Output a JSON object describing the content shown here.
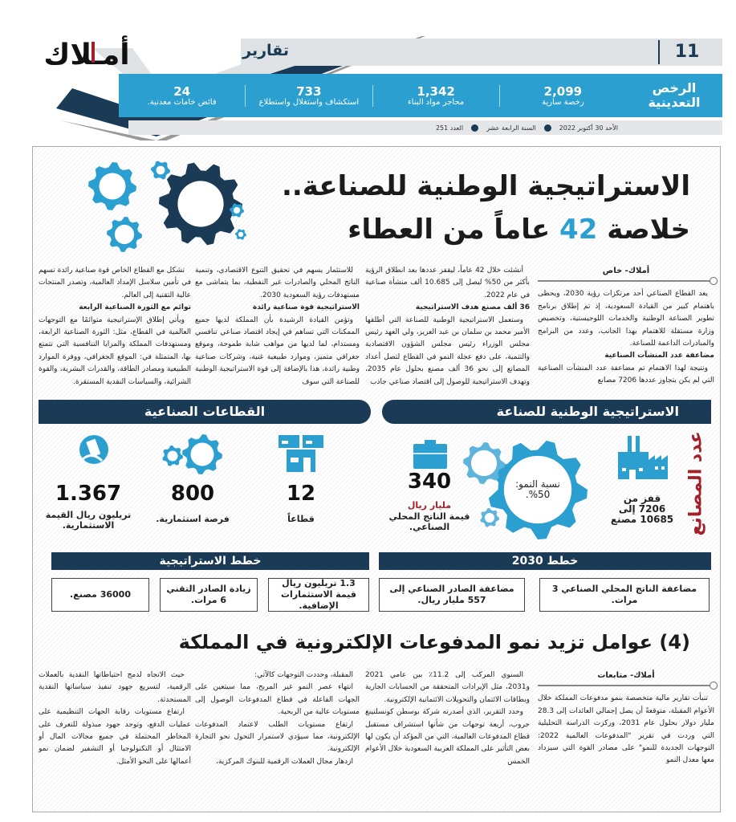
{
  "brand": {
    "logo_text": "أملاك",
    "accent": "#2a9fd0",
    "navy": "#1b3a55",
    "red": "#a3202a"
  },
  "header": {
    "section": "تقارير",
    "page_number": "11",
    "date": "الأحد 30 أكتوبر 2022",
    "year": "السنة الرابعة عشر",
    "issue": "العدد 251"
  },
  "stats": {
    "title": "الرخص التعدينية",
    "items": [
      {
        "value": "2,099",
        "label": "رخصة سارية"
      },
      {
        "value": "1,342",
        "label": "محاجر مواد البناء"
      },
      {
        "value": "733",
        "label": "استكشاف واستغلال واستطلاع"
      },
      {
        "value": "24",
        "label": "فائض خامات معدنية."
      }
    ]
  },
  "article1": {
    "title_line1": "الاستراتيجية الوطنية للصناعة..",
    "title_line2_pre": "خلاصة ",
    "title_line2_num": "42",
    "title_line2_post": " عاماً من العطاء",
    "byline": "أملاك- خاص",
    "columns": [
      [
        {
          "t": "p",
          "x": "يعد القطاع الصناعي أحد مرتكزات رؤية 2030، ويحظى باهتمام كبير من القيادة السعودية، إذ تم إطلاق برنامج تطوير الصناعة الوطنية والخدمات اللوجيستية، وتخصيص وزارة مستقلة للاهتمام بهذا الجانب، وعدد من البرامج والمبادرات الداعمة للصناعة."
        },
        {
          "t": "h",
          "x": "مضاعفة عدد المنشآت الصناعية"
        },
        {
          "t": "p",
          "x": "ونتيجة لهذا الاهتمام تم مضاعفة عدد المنشآت الصناعية التي لم يكن يتجاوز عددها 7206 مصانع"
        }
      ],
      [
        {
          "t": "p",
          "x": "أنشئت خلال 42 عاماً، ليقفز عددها بعد انطلاق الرؤية بأكثر من 50% ليصل إلى 10.685 ألف منشأة صناعية في عام 2022."
        },
        {
          "t": "h",
          "x": "36 ألف مصنع هدف الاستراتيجية"
        },
        {
          "t": "p",
          "x": "وستعمل الاستراتيجية الوطنية للصناعة التي أطلقها الأمير محمد بن سلمان بن عبد العزيز، ولي العهد رئيس مجلس الوزراء رئيس مجلس الشؤون الاقتصادية والتنمية، على دفع عجلة النمو في القطاع لتصل أعداد المصانع إلى نحو 36 ألف مصنع بحلول عام 2035، وتهدف الاستراتيجية للوصول إلى اقتصاد صناعي جاذب"
        }
      ],
      [
        {
          "t": "p",
          "x": "للاستثمار يسهم في تحقيق التنوع الاقتصادي، وتنمية الناتج المحلي والصادرات غير النفطية، بما يتماشى مع مستهدفات رؤية السعودية 2030."
        },
        {
          "t": "h",
          "x": "الاستراتيجية قوة صناعية رائدة"
        },
        {
          "t": "p",
          "x": "وتؤمن القيادة الرشيدة بأن المملكة لديها جميع الممكنات التي تساهم في إيجاد اقتصاد صناعي تنافسي ومستدام، لما لديها من مواهب شابة طموحة، وموقع جغرافي متميز، وموارد طبيعية غنية، وشركات صناعية وطنية رائدة، هذا بالإضافة إلى قوة الاستراتيجية الوطنية للصناعة التي سوف"
        }
      ],
      [
        {
          "t": "p",
          "x": "تشكل مع القطاع الخاص قوة صناعية رائدة تسهم في تأمين سلاسل الإمداد العالمية، وتصدر المنتجات عالية التقنية إلى العالم."
        },
        {
          "t": "h",
          "x": "توائم مع الثورة الصناعية الرابعة"
        },
        {
          "t": "p",
          "x": "ويأتي إطلاق الإستراتيجية متوائمًا مع التوجهات العالمية في القطاع، مثل: الثورة الصناعية الرابعة، ومستهدفات المملكة والمزايا التنافسية التي تتمتع بها، المتمثلة في: الموقع الجغرافي، ووفرة الموارد الطبيعية ومصادر الطاقة، والقدرات البشرية، والقوة الشرائية، والسياسات النقدية المستقرة."
        }
      ]
    ]
  },
  "infographic": {
    "national": {
      "title": "الاستراتيجية الوطنية للصناعة",
      "side_label": "عدد المصانع",
      "factories": "قفز من 7206 إلى 10685 مصنع",
      "growth": "نسبة النمو: 50%.",
      "gdp_value": "340",
      "gdp_unit": "مليار ريال",
      "gdp_label": "قيمة الناتج المحلي الصناعي."
    },
    "sectors": {
      "title": "القطاعات الصناعية",
      "items": [
        {
          "value": "12",
          "label": "قطاعاً",
          "icon": "buildings-icon"
        },
        {
          "value": "800",
          "label": "فرصة استثمارية.",
          "icon": "gears-icon"
        },
        {
          "value": "1.367",
          "label": "تريليون ريال القيمة الاستثمارية.",
          "icon": "money-hand-icon"
        }
      ]
    },
    "plans2030": {
      "title": "خطط 2030",
      "items": [
        "مضاعفة الناتج المحلي الصناعي 3 مرات.",
        "مضاعفة الصادر الصناعي إلى 557 مليار ريال."
      ]
    },
    "strategy_plans": {
      "title": "خطط الاستراتيجية",
      "items": [
        "1.3 تريليون ريال قيمة الاستثمارات الإضافية.",
        "زيادة الصادر التقني 6 مرات.",
        "36000 مصنع."
      ]
    }
  },
  "article2": {
    "title": "(4) عوامل تزيد نمو المدفوعات الإلكترونية في المملكة",
    "byline": "أملاك- متابعات",
    "columns": [
      [
        {
          "t": "p",
          "x": "تنبأت تقارير مالية متخصصة بنمو مدفوعات المملكة خلال الأعوام المقبلة، متوقعةً أن يصل إجمالي العائدات إلى 28.3 مليار دولار بحلول عام 2031، وركزت الدراسة التحليلية التي وردت في تقرير \"المدفوعات العالمية 2022: التوجهات الجديدة للنمو\" على مصادر القوة التي سيزداد معها معدل النمو"
        }
      ],
      [
        {
          "t": "p",
          "x": "السنوي المركب إلى 11.2٪ بين عامي 2021 و2031، مثل الإيرادات المتحققة من الحسابات الجارية وبطاقات الائتمان والتحويلات الائتمانية الإلكترونية."
        },
        {
          "t": "p",
          "x": "وحدد التقرير، الذي أصدرته شركة بوسطن كونسلتينغ جروب، أربعة توجهات من شأنها استشراف مستقبل قطاع المدفوعات العالمية، التي من المؤكد أن يكون لها بعض التأثير على المملكة العربية السعودية خلال الأعوام الخمس"
        }
      ],
      [
        {
          "t": "p",
          "x": "المقبلة، وحددت التوجهات كالآتي:"
        },
        {
          "t": "p",
          "x": "انتهاء عصر النمو غير المربح، مما سيتعين على الجهات الفاعلة في قطاع المدفوعات الوصول إلى مستويات عالية من الربحية."
        },
        {
          "t": "p",
          "x": "ارتفاع مستويات الطلب لاعتماد المدفوعات الإلكترونية، مما سيؤدي لاستمرار التحول نحو التجارة الإلكترونية."
        },
        {
          "t": "p",
          "x": "ازدهار مجال العملات الرقمية للبنوك المركزية،"
        }
      ],
      [
        {
          "t": "p",
          "x": "حيث الاتجاه لدمج احتياطاتها النقدية بالعملات الرقمية، لتسريع جهود تنفيذ سياساتها النقدية المستحدثة."
        },
        {
          "t": "p",
          "x": "ارتفاع مستويات رقابة الجهات التنظيمية على عمليات الدفع، وتوجد جهود مبذولة للتعرف على المخاطر المحتملة في جميع مجالات المال أو الامتثال أو التكنولوجيا أو التشفير لضمان نمو أعمالها على النحو الأمثل."
        }
      ]
    ]
  }
}
